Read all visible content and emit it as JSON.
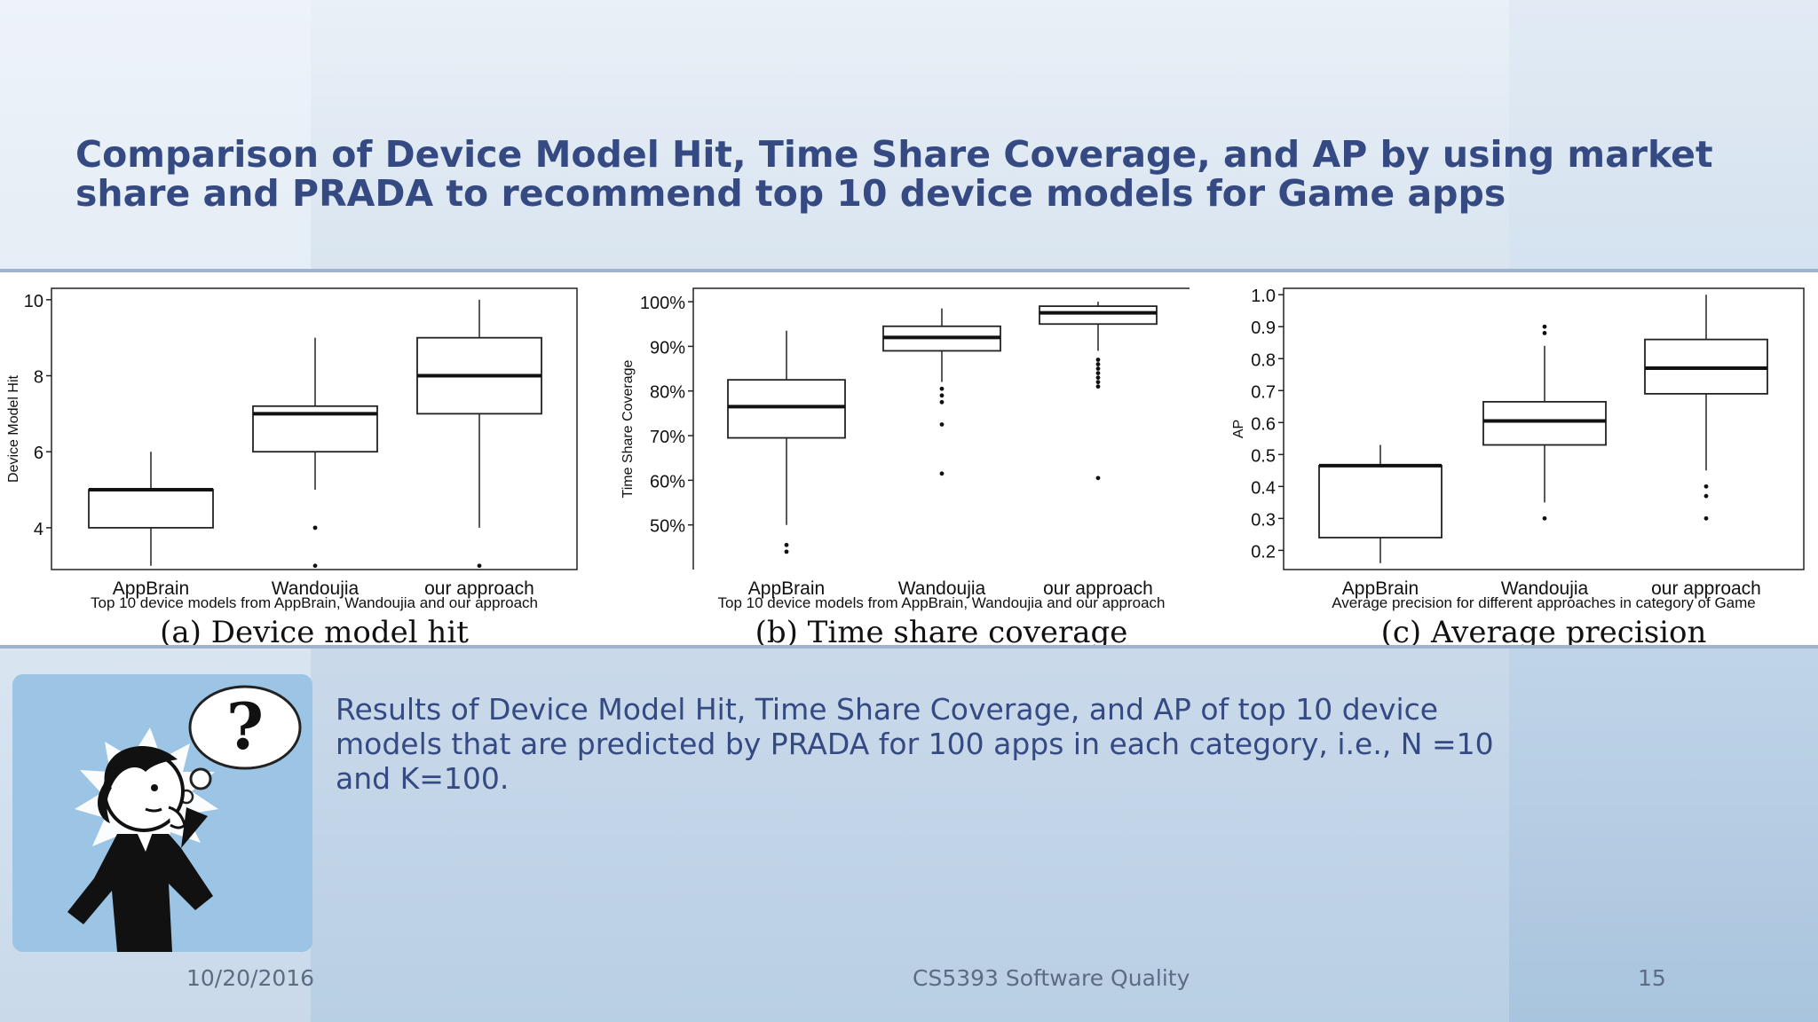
{
  "slide": {
    "title": "Comparison of Device Model Hit, Time Share Coverage, and AP by using market share and PRADA to recommend top 10 device models for Game apps",
    "body": "Results of Device Model Hit, Time Share Coverage, and AP of top 10 device models that are predicted by PRADA for 100 apps in each category, i.e., N =10 and K=100.",
    "footer": {
      "date": "10/20/2016",
      "course": "CS5393 Software Quality",
      "page": "15"
    }
  },
  "colors": {
    "title": "#354a83",
    "body": "#354a83",
    "clipart_bg": "#9cc4e4"
  },
  "icons": {
    "clipart": "thinking-person-question-mark-icon"
  },
  "chart_data": [
    {
      "type": "boxplot",
      "caption": "(a) Device model hit",
      "subtitle": "Top 10 device models from AppBrain, Wandoujia and our approach",
      "ylabel": "Device Model Hit",
      "ylim": [
        2.9,
        10.3
      ],
      "yticks": [
        {
          "v": 4,
          "label": "4"
        },
        {
          "v": 6,
          "label": "6"
        },
        {
          "v": 8,
          "label": "8"
        },
        {
          "v": 10,
          "label": "10"
        }
      ],
      "categories": [
        "AppBrain",
        "Wandoujia",
        "our approach"
      ],
      "boxes": [
        {
          "min": 3,
          "q1": 4,
          "median": 5,
          "q3": 5,
          "max": 6,
          "outliers": []
        },
        {
          "min": 5,
          "q1": 6,
          "median": 7,
          "q3": 7.2,
          "max": 9,
          "outliers": [
            4,
            3
          ]
        },
        {
          "min": 4,
          "q1": 7,
          "median": 8,
          "q3": 9,
          "max": 10,
          "outliers": [
            3
          ]
        }
      ]
    },
    {
      "type": "boxplot",
      "caption": "(b) Time share coverage",
      "subtitle": "Top 10 device models from AppBrain, Wandoujia and our approach",
      "ylabel": "Time Share Coverage",
      "ylim": [
        40,
        103
      ],
      "yticks": [
        {
          "v": 50,
          "label": "50%"
        },
        {
          "v": 60,
          "label": "60%"
        },
        {
          "v": 70,
          "label": "70%"
        },
        {
          "v": 80,
          "label": "80%"
        },
        {
          "v": 90,
          "label": "90%"
        },
        {
          "v": 100,
          "label": "100%"
        }
      ],
      "categories": [
        "AppBrain",
        "Wandoujia",
        "our approach"
      ],
      "boxes": [
        {
          "min": 50,
          "q1": 69.5,
          "median": 76.5,
          "q3": 82.5,
          "max": 93.5,
          "outliers": [
            44,
            45.5
          ]
        },
        {
          "min": 82,
          "q1": 89,
          "median": 92,
          "q3": 94.5,
          "max": 98.5,
          "outliers": [
            80.5,
            79,
            77.5,
            72.5,
            61.5
          ]
        },
        {
          "min": 89,
          "q1": 95,
          "median": 97.5,
          "q3": 99,
          "max": 100,
          "outliers": [
            87,
            86,
            85,
            84,
            83,
            82,
            81,
            60.5
          ]
        }
      ]
    },
    {
      "type": "boxplot",
      "caption": "(c) Average precision",
      "subtitle": "Average precision for different approaches in category of Game",
      "ylabel": "AP",
      "ylim": [
        0.14,
        1.02
      ],
      "yticks": [
        {
          "v": 0.2,
          "label": "0.2"
        },
        {
          "v": 0.3,
          "label": "0.3"
        },
        {
          "v": 0.4,
          "label": "0.4"
        },
        {
          "v": 0.5,
          "label": "0.5"
        },
        {
          "v": 0.6,
          "label": "0.6"
        },
        {
          "v": 0.7,
          "label": "0.7"
        },
        {
          "v": 0.8,
          "label": "0.8"
        },
        {
          "v": 0.9,
          "label": "0.9"
        },
        {
          "v": 1.0,
          "label": "1.0"
        }
      ],
      "categories": [
        "AppBrain",
        "Wandoujia",
        "our approach"
      ],
      "boxes": [
        {
          "min": 0.16,
          "q1": 0.24,
          "median": 0.465,
          "q3": 0.465,
          "max": 0.53,
          "outliers": []
        },
        {
          "min": 0.35,
          "q1": 0.53,
          "median": 0.605,
          "q3": 0.665,
          "max": 0.84,
          "outliers": [
            0.88,
            0.9,
            0.3
          ]
        },
        {
          "min": 0.45,
          "q1": 0.69,
          "median": 0.77,
          "q3": 0.86,
          "max": 1.0,
          "outliers": [
            0.4,
            0.37,
            0.3
          ]
        }
      ]
    }
  ]
}
